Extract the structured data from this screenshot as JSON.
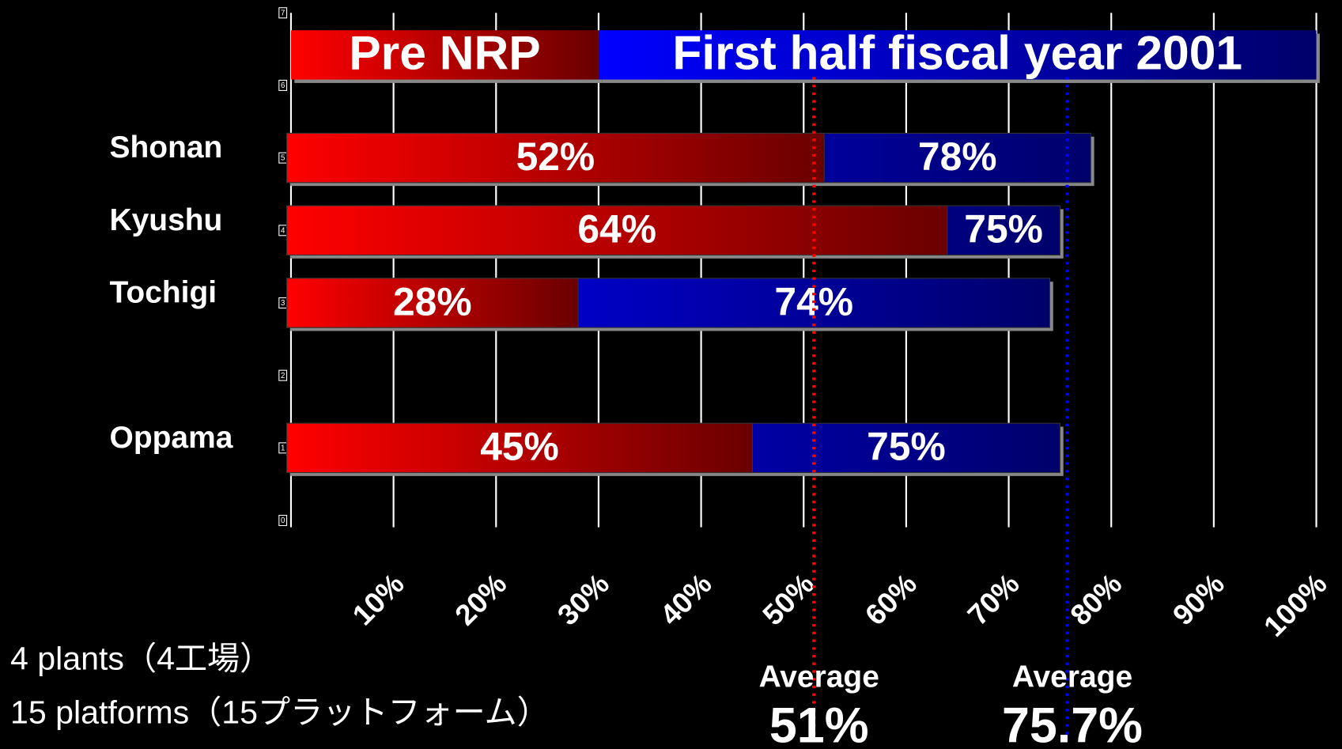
{
  "chart_data": {
    "type": "bar",
    "orientation": "horizontal",
    "categories": [
      "Oppama",
      null,
      "Tochigi",
      "Kyushu",
      "Shonan"
    ],
    "series": [
      {
        "name": "First half fiscal year 2001",
        "color": "#0000ff",
        "values": [
          75,
          null,
          74,
          75,
          78
        ],
        "value_labels": [
          "75%",
          null,
          "74%",
          "75%",
          "78%"
        ]
      },
      {
        "name": "Pre NRP",
        "color": "#ff0000",
        "values": [
          45,
          null,
          28,
          64,
          52
        ],
        "value_labels": [
          "45%",
          null,
          "28%",
          "64%",
          "52%"
        ]
      }
    ],
    "xlim": [
      0,
      100
    ],
    "xticks": [
      {
        "value": 10,
        "label": "10%"
      },
      {
        "value": 20,
        "label": "20%"
      },
      {
        "value": 30,
        "label": "30%"
      },
      {
        "value": 40,
        "label": "40%"
      },
      {
        "value": 50,
        "label": "50%"
      },
      {
        "value": 60,
        "label": "60%"
      },
      {
        "value": 70,
        "label": "70%"
      },
      {
        "value": 80,
        "label": "80%"
      },
      {
        "value": 90,
        "label": "90%"
      },
      {
        "value": 100,
        "label": "100%"
      }
    ],
    "ylim": [
      0,
      7
    ],
    "yticks": [
      0,
      1,
      2,
      3,
      4,
      5,
      6,
      7
    ],
    "grid": true,
    "averages": [
      {
        "name": "Average",
        "value": 51,
        "label": "51%",
        "color": "#ff0000"
      },
      {
        "name": "Average",
        "value": 75.7,
        "label": "75.7%",
        "color": "#0000ff"
      }
    ],
    "notes": [
      "4 plants（4工場）",
      "15 platforms（15プラットフォーム）"
    ]
  }
}
